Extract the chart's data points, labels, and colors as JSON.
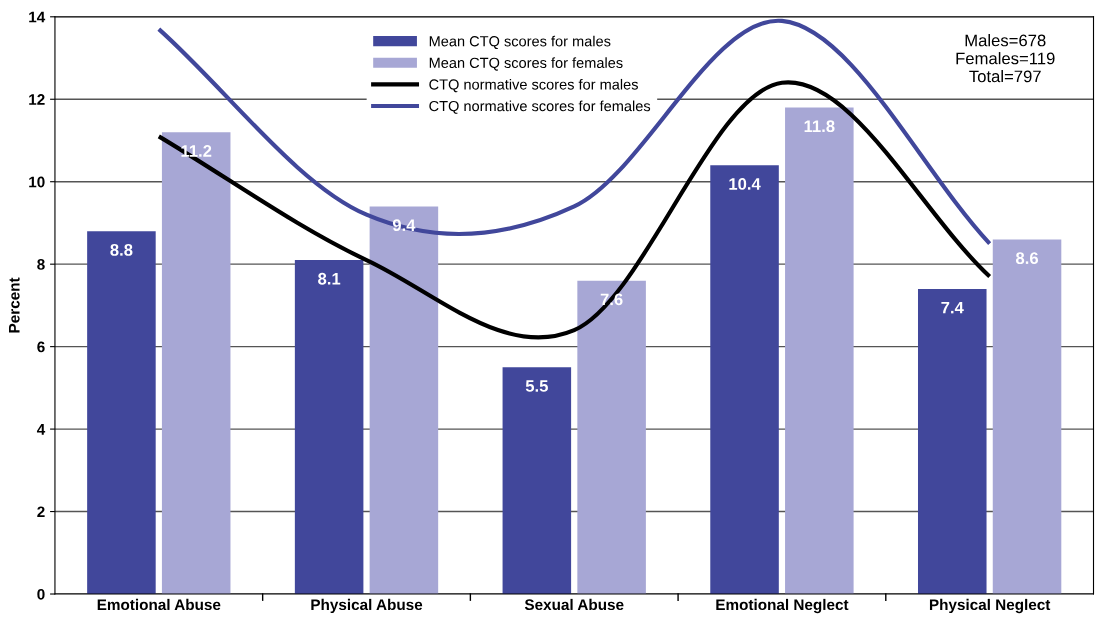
{
  "chart_data": {
    "type": "bar",
    "categories": [
      "Emotional Abuse",
      "Physical Abuse",
      "Sexual Abuse",
      "Emotional Neglect",
      "Physical Neglect"
    ],
    "ylabel": "Percent",
    "series": [
      {
        "name": "Mean CTQ scores for males",
        "color": "#41479b",
        "values": [
          8.8,
          8.1,
          5.5,
          10.4,
          7.4
        ],
        "value_labels": [
          "8.8",
          "8.1",
          "5.5",
          "10.4",
          "7.4"
        ]
      },
      {
        "name": "Mean CTQ scores for females",
        "color": "#a7a7d5",
        "values": [
          11.2,
          9.4,
          7.6,
          11.8,
          8.6
        ],
        "value_labels": [
          "11.2",
          "9.4",
          "7.6",
          "11.8",
          "8.6"
        ]
      },
      {
        "name": "CTQ normative scores for males",
        "type": "line",
        "color": "#000000",
        "values": [
          11.1,
          8.1,
          6.4,
          12.4,
          7.7
        ]
      },
      {
        "name": "CTQ normative scores for females",
        "type": "line",
        "color": "#41479b",
        "values": [
          13.7,
          9.2,
          9.4,
          13.9,
          8.5
        ]
      }
    ],
    "ylim": [
      0,
      14
    ],
    "yticks": [
      0,
      2,
      4,
      6,
      8,
      10,
      12,
      14
    ],
    "grid": "y",
    "legend": "top",
    "marker": "none",
    "annotations": [
      "Males=678\nFemales=119\nTotal=797"
    ]
  }
}
